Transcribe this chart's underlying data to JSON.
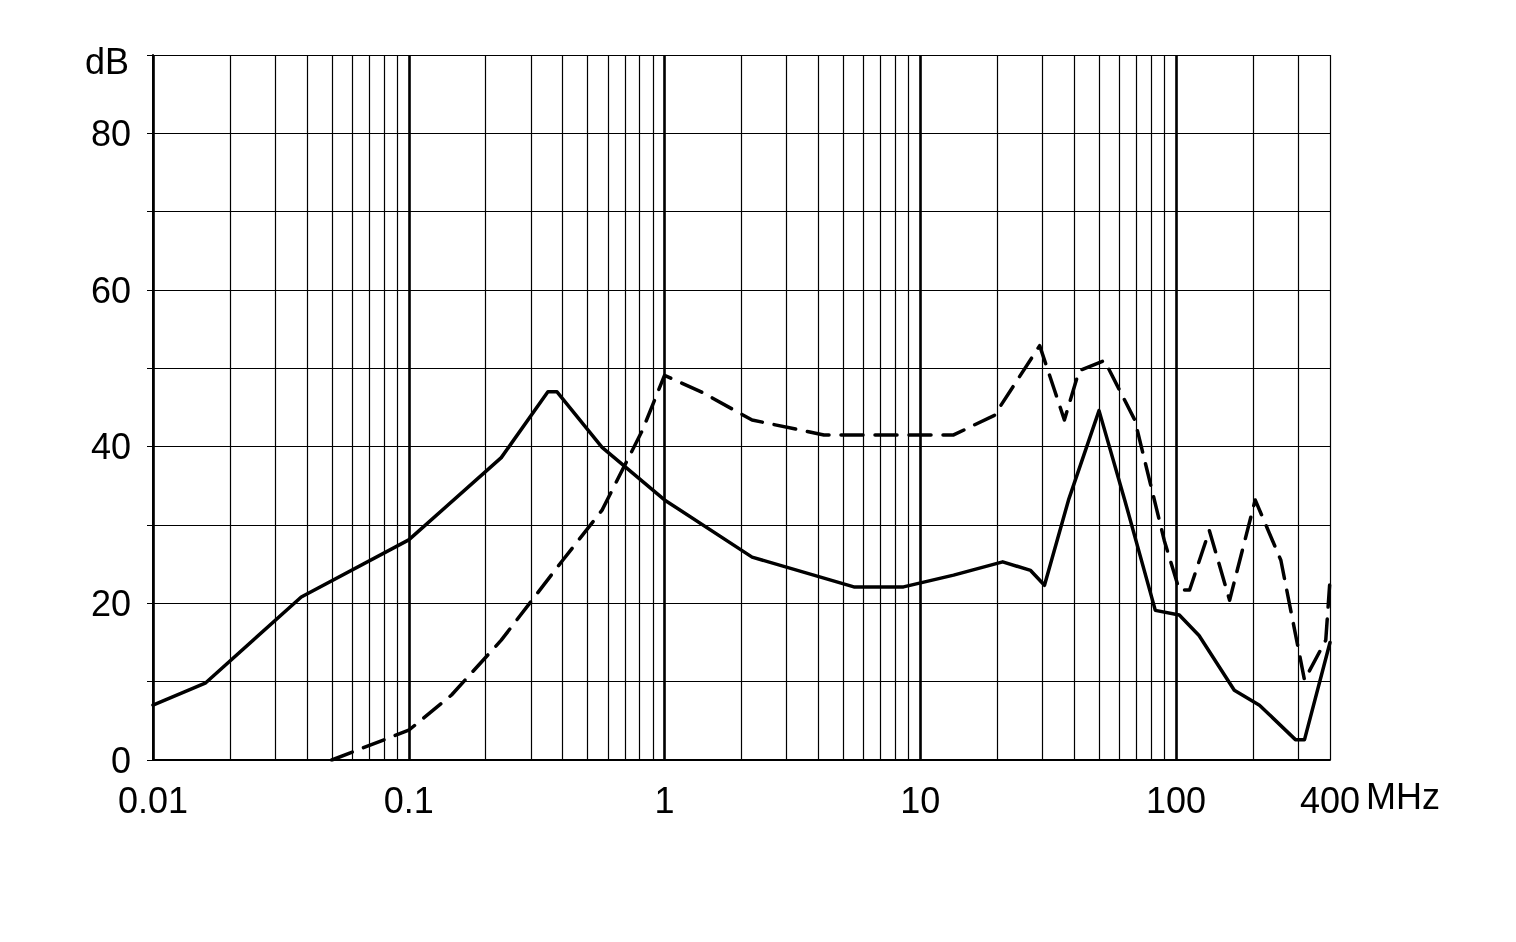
{
  "chart_data": {
    "type": "line",
    "xlabel": "MHz",
    "ylabel": "dB",
    "log": "x",
    "grid": true,
    "marker": "none",
    "xlim": [
      0.01,
      400
    ],
    "ylim": [
      0,
      90
    ],
    "xticks": [
      {
        "value": 0.01,
        "label": "0.01"
      },
      {
        "value": 0.02,
        "label": null
      },
      {
        "value": 0.03,
        "label": null
      },
      {
        "value": 0.04,
        "label": null
      },
      {
        "value": 0.05,
        "label": null
      },
      {
        "value": 0.06,
        "label": null
      },
      {
        "value": 0.07,
        "label": null
      },
      {
        "value": 0.08,
        "label": null
      },
      {
        "value": 0.09,
        "label": null
      },
      {
        "value": 0.1,
        "label": "0.1"
      },
      {
        "value": 0.2,
        "label": null
      },
      {
        "value": 0.3,
        "label": null
      },
      {
        "value": 0.4,
        "label": null
      },
      {
        "value": 0.5,
        "label": null
      },
      {
        "value": 0.6,
        "label": null
      },
      {
        "value": 0.7,
        "label": null
      },
      {
        "value": 0.8,
        "label": null
      },
      {
        "value": 0.9,
        "label": null
      },
      {
        "value": 1,
        "label": "1"
      },
      {
        "value": 2,
        "label": null
      },
      {
        "value": 3,
        "label": null
      },
      {
        "value": 4,
        "label": null
      },
      {
        "value": 5,
        "label": null
      },
      {
        "value": 6,
        "label": null
      },
      {
        "value": 7,
        "label": null
      },
      {
        "value": 8,
        "label": null
      },
      {
        "value": 9,
        "label": null
      },
      {
        "value": 10,
        "label": "10"
      },
      {
        "value": 20,
        "label": null
      },
      {
        "value": 30,
        "label": null
      },
      {
        "value": 40,
        "label": null
      },
      {
        "value": 50,
        "label": null
      },
      {
        "value": 60,
        "label": null
      },
      {
        "value": 70,
        "label": null
      },
      {
        "value": 80,
        "label": null
      },
      {
        "value": 90,
        "label": null
      },
      {
        "value": 100,
        "label": "100"
      },
      {
        "value": 200,
        "label": null
      },
      {
        "value": 300,
        "label": null
      },
      {
        "value": 400,
        "label": "400"
      }
    ],
    "yticks": [
      0,
      {
        "value": 10,
        "label": null
      },
      20,
      {
        "value": 30,
        "label": null
      },
      40,
      {
        "value": 50,
        "label": null
      },
      60,
      {
        "value": 70,
        "label": null
      },
      80,
      {
        "value": 90,
        "label": null
      }
    ],
    "series": [
      {
        "color": "#000000",
        "line_style": "solid",
        "x": [
          0.01,
          0.016,
          0.038,
          0.1,
          0.23,
          0.35,
          0.38,
          0.57,
          1,
          2.2,
          5.5,
          8.6,
          13.5,
          21,
          27,
          30.6,
          38,
          50,
          63,
          83,
          103,
          123,
          169,
          212,
          293,
          318,
          400
        ],
        "values": [
          7,
          9.8,
          20.8,
          28.1,
          38.6,
          47,
          47,
          39.9,
          33.2,
          25.9,
          22.1,
          22.1,
          23.6,
          25.3,
          24.2,
          22.3,
          33.2,
          44.6,
          33.2,
          19.1,
          18.5,
          15.9,
          8.9,
          7,
          2.6,
          2.6,
          15
        ]
      },
      {
        "color": "#000000",
        "line_style": "dashed",
        "x": [
          0.05,
          0.1,
          0.147,
          0.23,
          0.4,
          0.57,
          0.82,
          1,
          1.41,
          2.2,
          4.2,
          8.6,
          13.5,
          19.5,
          29.3,
          33.5,
          36.6,
          41.8,
          52.5,
          69,
          90,
          103,
          113,
          135,
          162,
          204,
          257,
          318,
          385,
          400
        ],
        "values": [
          0,
          3.8,
          8.3,
          15.3,
          25.5,
          31.9,
          42.1,
          49.1,
          46.9,
          43.4,
          41.5,
          41.5,
          41.5,
          44,
          52.9,
          47.2,
          43.4,
          49.7,
          51,
          43.4,
          28,
          21.7,
          21.7,
          29.3,
          20.4,
          33.2,
          25.5,
          10.2,
          15.3,
          23
        ]
      }
    ]
  }
}
